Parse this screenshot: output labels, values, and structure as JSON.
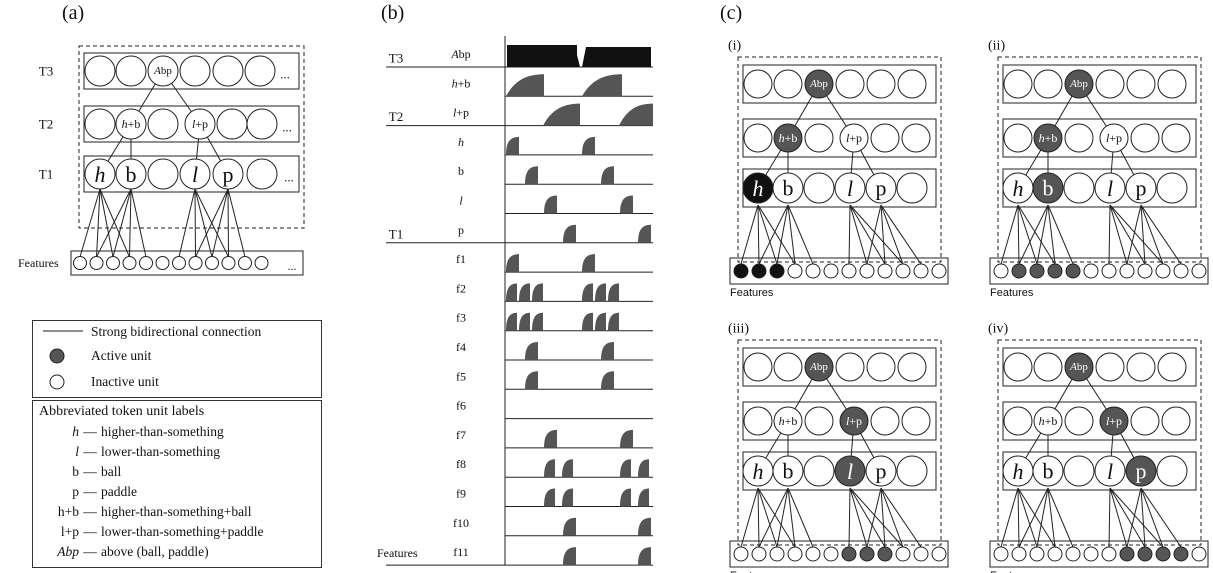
{
  "panels": {
    "a": "(a)",
    "b": "(b)",
    "c": "(c)",
    "c_sub": [
      "(i)",
      "(ii)",
      "(iii)",
      "(iv)"
    ]
  },
  "units": {
    "above": "Abp",
    "higher_ball": "h+b",
    "lower_paddle": "l+p",
    "higher": "h",
    "ball": "b",
    "lower": "l",
    "paddle": "p",
    "ellipsis": "..."
  },
  "tier_labels": [
    "T3",
    "T2",
    "T1"
  ],
  "features_label": "Features",
  "legend": {
    "connection": "Strong bidirectional connection",
    "active": "Active unit",
    "inactive": "Inactive unit"
  },
  "abbreviations": {
    "title": "Abbreviated token unit labels",
    "rows": [
      {
        "key": "h",
        "desc": "higher-than-something"
      },
      {
        "key": "l",
        "desc": "lower-than-something"
      },
      {
        "key": "b",
        "desc": "ball"
      },
      {
        "key": "p",
        "desc": "paddle"
      },
      {
        "key": "h+b",
        "desc": "higher-than-something+ball"
      },
      {
        "key": "l+p",
        "desc": "lower-than-something+paddle"
      },
      {
        "key": "Abp",
        "desc": "above (ball, paddle)"
      }
    ]
  },
  "timeline": {
    "tiers": [
      "T3",
      "T2",
      "T1"
    ],
    "rows": [
      "Abp",
      "h+b",
      "l+p",
      "h",
      "b",
      "l",
      "p",
      "f1",
      "f2",
      "f3",
      "f4",
      "f5",
      "f6",
      "f7",
      "f8",
      "f9",
      "f10",
      "f11"
    ],
    "features_label": "Features"
  },
  "colors": {
    "active": "#555555",
    "strong_active": "#111111",
    "inactive": "#ffffff",
    "line": "#222222"
  }
}
